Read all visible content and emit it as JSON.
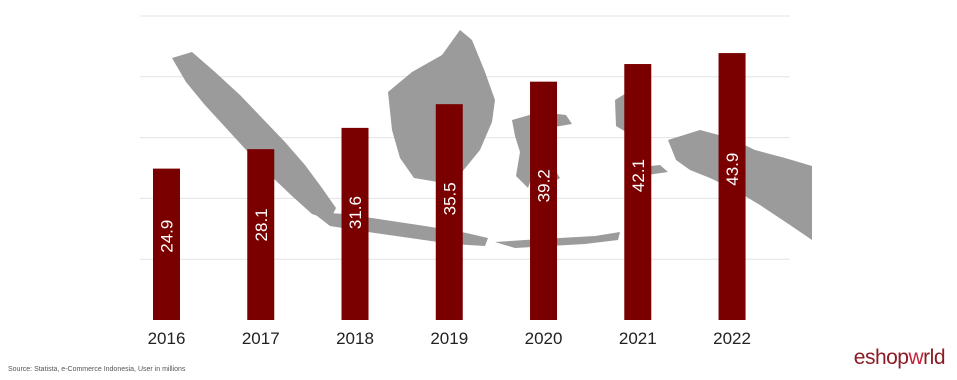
{
  "chart_data": {
    "type": "bar",
    "categories": [
      "2016",
      "2017",
      "2018",
      "2019",
      "2020",
      "2021",
      "2022"
    ],
    "values": [
      24.9,
      28.1,
      31.6,
      35.5,
      39.2,
      42.1,
      43.9
    ],
    "title": "",
    "xlabel": "",
    "ylabel": "",
    "ylim": [
      0,
      50
    ],
    "grid": true,
    "legend": "none",
    "bar_color": "#7a0000",
    "label_color": "#ffffff",
    "background_image": "indonesia-map"
  },
  "footer": {
    "source": "Source: Statista, e-Commerce Indonesia, User in millions",
    "logo_part1": "eshop",
    "logo_part2": "w",
    "logo_part3": "rld"
  }
}
